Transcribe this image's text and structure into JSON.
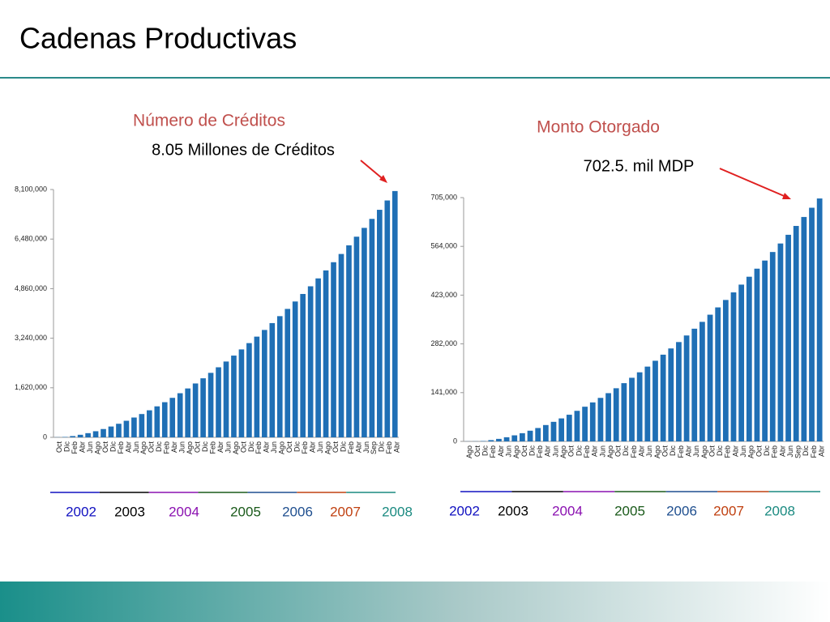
{
  "header": {
    "title": "Cadenas Productivas"
  },
  "chart_data": [
    {
      "type": "bar",
      "title": "Número de Créditos",
      "annotation": "8.05 Millones de Créditos",
      "categories": [
        "Oct",
        "Dic",
        "Feb",
        "Abr",
        "Jun",
        "Ago",
        "Oct",
        "Dic",
        "Feb",
        "Abr",
        "Jun",
        "Ago",
        "Oct",
        "Dic",
        "Feb",
        "Abr",
        "Jun",
        "Ago",
        "Oct",
        "Dic",
        "Feb",
        "Abr",
        "Jun",
        "Ago",
        "Oct",
        "Dic",
        "Feb",
        "Abr",
        "Jun",
        "Ago",
        "Oct",
        "Dic",
        "Feb",
        "Abr",
        "Jun",
        "Ago",
        "Oct",
        "Dic",
        "Feb",
        "Abr",
        "Jun",
        "Sep",
        "Dic",
        "Feb",
        "Abr"
      ],
      "values": [
        5000,
        13000,
        42000,
        84000,
        137000,
        200000,
        272000,
        354000,
        444000,
        542000,
        648000,
        762000,
        884000,
        1013000,
        1149000,
        1291000,
        1442000,
        1598000,
        1761000,
        1930000,
        2108000,
        2290000,
        2478000,
        2672000,
        2874000,
        3080000,
        3292000,
        3510000,
        3734000,
        3961000,
        4198000,
        4440000,
        4686000,
        4937000,
        5195000,
        5456000,
        5724000,
        5993000,
        6276000,
        6558000,
        6846000,
        7140000,
        7437000,
        7742000,
        8050000
      ],
      "color": "#1f6fb5",
      "ylim": [
        0,
        8100000
      ],
      "yticks": [
        0,
        {
          "value": 1620000,
          "label": "1,620,000"
        },
        {
          "value": 3240000,
          "label": "3,240,000"
        },
        {
          "value": 4860000,
          "label": "4,860,000"
        },
        {
          "value": 6480000,
          "label": "6,480,000"
        },
        {
          "value": 8100000,
          "label": "8,100,000"
        }
      ],
      "year_labels": [
        {
          "text": "2002",
          "color": "#1010c0"
        },
        {
          "text": "2003",
          "color": "#000000"
        },
        {
          "text": "2004",
          "color": "#8a10b0"
        },
        {
          "text": "2005",
          "color": "#1a5a1a"
        },
        {
          "text": "2006",
          "color": "#1f4f8f"
        },
        {
          "text": "2007",
          "color": "#c04010"
        },
        {
          "text": "2008",
          "color": "#1a8a80"
        }
      ]
    },
    {
      "type": "bar",
      "title": "Monto Otorgado",
      "annotation": "702.5. mil MDP",
      "categories": [
        "Ago",
        "Oct",
        "Dic",
        "Feb",
        "Abr",
        "Jun",
        "Ago",
        "Oct",
        "Dic",
        "Feb",
        "Abr",
        "Jun",
        "Ago",
        "Oct",
        "Dic",
        "Feb",
        "Abr",
        "Jun",
        "Ago",
        "Oct",
        "Dic",
        "Feb",
        "Abr",
        "Jun",
        "Ago",
        "Oct",
        "Dic",
        "Feb",
        "Abr",
        "Jun",
        "Ago",
        "Oct",
        "Dic",
        "Feb",
        "Abr",
        "Jun",
        "Ago",
        "Oct",
        "Dic",
        "Feb",
        "Abr",
        "Jun",
        "Sep",
        "Dic",
        "Feb",
        "Abr"
      ],
      "values": [
        300,
        400,
        1100,
        3700,
        7300,
        12000,
        17500,
        23700,
        30900,
        38700,
        47300,
        56600,
        66500,
        77100,
        88400,
        100300,
        112700,
        125800,
        139500,
        153700,
        168400,
        184000,
        199800,
        216300,
        233200,
        250800,
        268800,
        287300,
        306300,
        325900,
        345700,
        366400,
        387500,
        409000,
        430900,
        453400,
        476200,
        499500,
        523000,
        547700,
        572300,
        597500,
        623100,
        649000,
        675700,
        702500
      ],
      "color": "#1f6fb5",
      "ylim": [
        0,
        705000
      ],
      "yticks": [
        0,
        {
          "value": 141000,
          "label": "141,000"
        },
        {
          "value": 282000,
          "label": "282,000"
        },
        {
          "value": 423000,
          "label": "423,000"
        },
        {
          "value": 564000,
          "label": "564,000"
        },
        {
          "value": 705000,
          "label": "705,000"
        }
      ],
      "year_labels": [
        {
          "text": "2002",
          "color": "#1010c0"
        },
        {
          "text": "2003",
          "color": "#000000"
        },
        {
          "text": "2004",
          "color": "#8a10b0"
        },
        {
          "text": "2005",
          "color": "#1a5a1a"
        },
        {
          "text": "2006",
          "color": "#1f4f8f"
        },
        {
          "text": "2007",
          "color": "#c04010"
        },
        {
          "text": "2008",
          "color": "#1a8a80"
        }
      ]
    }
  ]
}
